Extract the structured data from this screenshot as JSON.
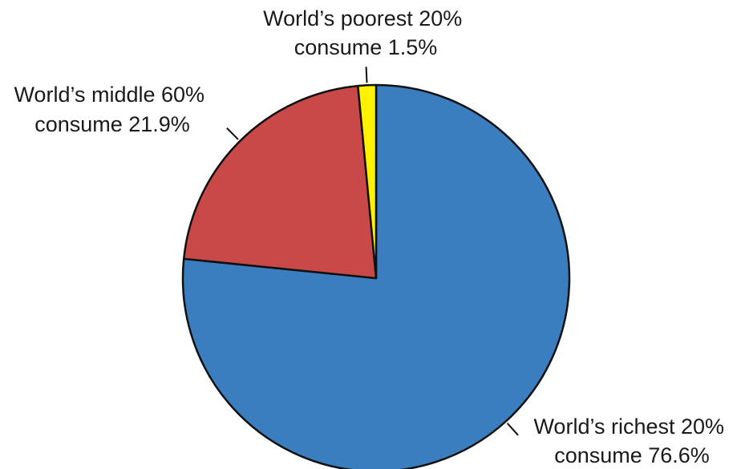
{
  "chart_data": {
    "type": "pie",
    "title": "",
    "start_angle_deg": 0,
    "direction": "clockwise",
    "slices": [
      {
        "label_lines": [
          "World’s richest 20%",
          "consume 76.6%"
        ],
        "value": 76.6,
        "color": "#3a7ebf"
      },
      {
        "label_lines": [
          "World’s middle 60%",
          "consume 21.9%"
        ],
        "value": 21.9,
        "color": "#c94848"
      },
      {
        "label_lines": [
          "World’s poorest 20%",
          "consume 1.5%"
        ],
        "value": 1.5,
        "color": "#fff200"
      }
    ],
    "outline_color": "#111111"
  }
}
